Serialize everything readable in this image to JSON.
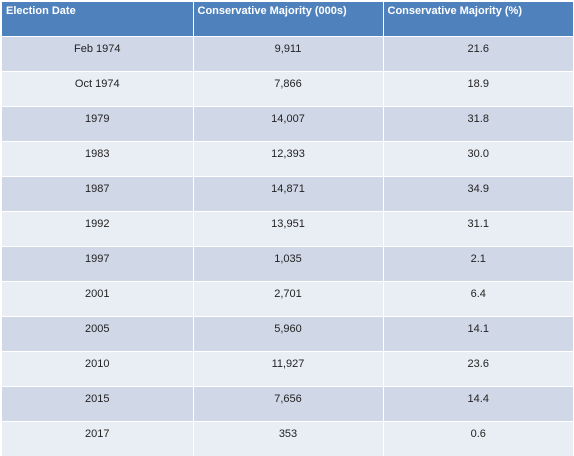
{
  "table": {
    "headers": [
      "Election Date",
      "Conservative Majority (000s)",
      "Conservative Majority (%)"
    ],
    "rows": [
      [
        "Feb 1974",
        "9,911",
        "21.6"
      ],
      [
        "Oct 1974",
        "7,866",
        "18.9"
      ],
      [
        "1979",
        "14,007",
        "31.8"
      ],
      [
        "1983",
        "12,393",
        "30.0"
      ],
      [
        "1987",
        "14,871",
        "34.9"
      ],
      [
        "1992",
        "13,951",
        "31.1"
      ],
      [
        "1997",
        "1,035",
        "2.1"
      ],
      [
        "2001",
        "2,701",
        "6.4"
      ],
      [
        "2005",
        "5,960",
        "14.1"
      ],
      [
        "2010",
        "11,927",
        "23.6"
      ],
      [
        "2015",
        "7,656",
        "14.4"
      ],
      [
        "2017",
        "353",
        "0.6"
      ]
    ]
  },
  "colors": {
    "header_bg": "#4f81bd",
    "header_text": "#ffffff",
    "row_band_dark": "#d0d8e8",
    "row_band_light": "#e9edf4"
  }
}
